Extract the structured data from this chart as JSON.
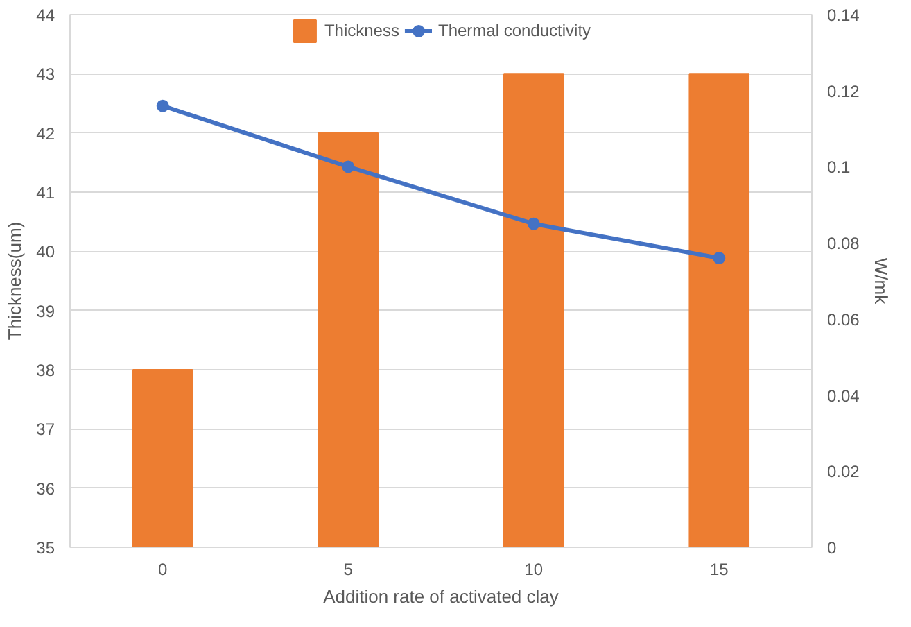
{
  "chart_data": {
    "type": "bar",
    "xlabel": "Addition rate of activated clay",
    "ylabel": "Thickness(um)",
    "y2label": "W/mk",
    "categories": [
      "0",
      "5",
      "10",
      "15"
    ],
    "series": [
      {
        "name": "Thickness",
        "color": "#ed7d31",
        "values": [
          38,
          42,
          43,
          43
        ]
      },
      {
        "name": "Thermal conductivity",
        "type": "line",
        "axis": "y2",
        "color": "#4472c4",
        "marker": "circle",
        "values": [
          0.116,
          0.1,
          0.085,
          0.076
        ]
      }
    ],
    "ylim": [
      35,
      44
    ],
    "yticks": [
      35,
      36,
      37,
      38,
      39,
      40,
      41,
      42,
      43,
      44
    ],
    "y2lim": [
      0,
      0.14
    ],
    "y2ticks": [
      0,
      0.02,
      0.04,
      0.06,
      0.08,
      0.1,
      0.12,
      0.14
    ],
    "grid": "y",
    "legend": "top"
  }
}
